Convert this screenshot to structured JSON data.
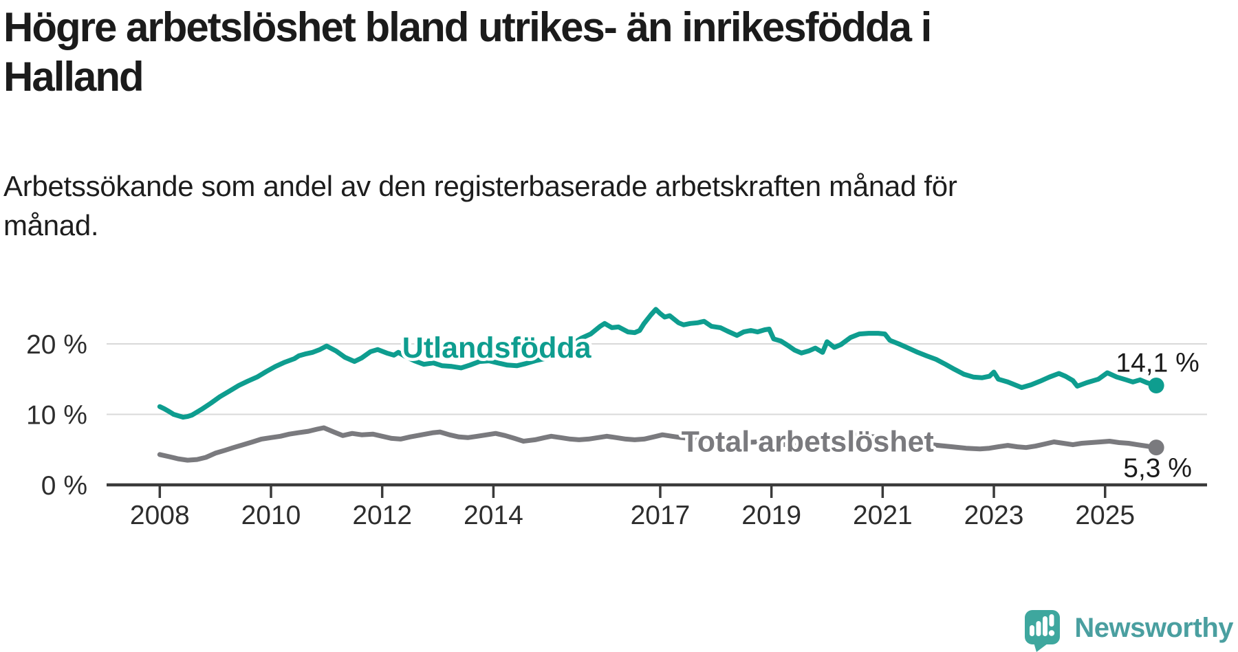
{
  "title": "Högre arbetslöshet bland utrikes- än inrikesfödda i Halland",
  "title_lines": [
    "Högre arbetslöshet bland utrikes- än inrikesfödda i",
    "Halland"
  ],
  "subtitle": "Arbetssökande som andel av den registerbaserade arbetskraften månad för månad.",
  "subtitle_lines": [
    "Arbetssökande som andel av den registerbaserade arbetskraften månad för",
    "månad."
  ],
  "branding": {
    "logo_text": "Newsworthy",
    "logo_icon": "speech-bubble-bar-chart-icon",
    "logo_bubble_color": "#3EA79E",
    "logo_text_color": "#4A9FA0"
  },
  "chart_data": {
    "type": "line",
    "grid": "horizontal",
    "legend": "inline-labels",
    "xlim": [
      2007.0,
      2026.85
    ],
    "ylim": [
      0,
      26.5
    ],
    "x_ticks": [
      {
        "year": 2008,
        "label": "2008"
      },
      {
        "year": 2010,
        "label": "2010"
      },
      {
        "year": 2012,
        "label": "2012"
      },
      {
        "year": 2014,
        "label": "2014"
      },
      {
        "year": 2017,
        "label": "2017"
      },
      {
        "year": 2019,
        "label": "2019"
      },
      {
        "year": 2021,
        "label": "2021"
      },
      {
        "year": 2023,
        "label": "2023"
      },
      {
        "year": 2025,
        "label": "2025"
      }
    ],
    "y_ticks": [
      {
        "value": 0,
        "label": "0 %"
      },
      {
        "value": 10,
        "label": "10 %"
      },
      {
        "value": 20,
        "label": "20 %"
      }
    ],
    "series": [
      {
        "name": "Utlandsfödda",
        "color": "#0E9D8F",
        "end_label": "14,1 %",
        "end_label_position": "above",
        "label_anchor": {
          "year": 2012.36,
          "value": 19.5
        },
        "points": [
          [
            2008.0,
            11.1
          ],
          [
            2008.08,
            10.8
          ],
          [
            2008.17,
            10.4
          ],
          [
            2008.25,
            10.0
          ],
          [
            2008.42,
            9.6
          ],
          [
            2008.5,
            9.7
          ],
          [
            2008.58,
            9.9
          ],
          [
            2008.75,
            10.7
          ],
          [
            2008.92,
            11.6
          ],
          [
            2009.08,
            12.5
          ],
          [
            2009.25,
            13.3
          ],
          [
            2009.42,
            14.1
          ],
          [
            2009.58,
            14.7
          ],
          [
            2009.75,
            15.3
          ],
          [
            2009.92,
            16.1
          ],
          [
            2010.08,
            16.8
          ],
          [
            2010.25,
            17.4
          ],
          [
            2010.42,
            17.9
          ],
          [
            2010.5,
            18.3
          ],
          [
            2010.63,
            18.6
          ],
          [
            2010.75,
            18.8
          ],
          [
            2010.88,
            19.2
          ],
          [
            2011.0,
            19.7
          ],
          [
            2011.17,
            19.0
          ],
          [
            2011.33,
            18.1
          ],
          [
            2011.5,
            17.5
          ],
          [
            2011.63,
            18.0
          ],
          [
            2011.79,
            18.9
          ],
          [
            2011.92,
            19.2
          ],
          [
            2012.08,
            18.7
          ],
          [
            2012.21,
            18.4
          ],
          [
            2012.29,
            18.8
          ],
          [
            2012.42,
            18.2
          ],
          [
            2012.58,
            17.6
          ],
          [
            2012.75,
            17.1
          ],
          [
            2012.92,
            17.3
          ],
          [
            2013.08,
            16.9
          ],
          [
            2013.25,
            16.8
          ],
          [
            2013.42,
            16.6
          ],
          [
            2013.58,
            17.0
          ],
          [
            2013.75,
            17.5
          ],
          [
            2013.92,
            17.6
          ],
          [
            2014.08,
            17.3
          ],
          [
            2014.25,
            17.0
          ],
          [
            2014.42,
            16.9
          ],
          [
            2014.58,
            17.2
          ],
          [
            2014.75,
            17.6
          ],
          [
            2014.92,
            17.9
          ],
          [
            2015.08,
            18.3
          ],
          [
            2015.25,
            19.1
          ],
          [
            2015.42,
            20.0
          ],
          [
            2015.58,
            20.8
          ],
          [
            2015.75,
            21.4
          ],
          [
            2015.92,
            22.5
          ],
          [
            2016.0,
            22.9
          ],
          [
            2016.13,
            22.3
          ],
          [
            2016.25,
            22.4
          ],
          [
            2016.42,
            21.7
          ],
          [
            2016.54,
            21.6
          ],
          [
            2016.63,
            21.9
          ],
          [
            2016.71,
            22.9
          ],
          [
            2016.83,
            24.1
          ],
          [
            2016.92,
            24.9
          ],
          [
            2017.0,
            24.3
          ],
          [
            2017.08,
            23.8
          ],
          [
            2017.17,
            24.0
          ],
          [
            2017.33,
            23.0
          ],
          [
            2017.42,
            22.7
          ],
          [
            2017.54,
            22.9
          ],
          [
            2017.67,
            23.0
          ],
          [
            2017.79,
            23.2
          ],
          [
            2017.92,
            22.5
          ],
          [
            2018.08,
            22.3
          ],
          [
            2018.21,
            21.8
          ],
          [
            2018.38,
            21.2
          ],
          [
            2018.5,
            21.7
          ],
          [
            2018.63,
            21.9
          ],
          [
            2018.75,
            21.7
          ],
          [
            2018.88,
            22.0
          ],
          [
            2018.96,
            22.1
          ],
          [
            2019.04,
            20.7
          ],
          [
            2019.17,
            20.4
          ],
          [
            2019.29,
            19.8
          ],
          [
            2019.42,
            19.1
          ],
          [
            2019.54,
            18.7
          ],
          [
            2019.67,
            19.0
          ],
          [
            2019.79,
            19.4
          ],
          [
            2019.92,
            18.8
          ],
          [
            2020.0,
            20.3
          ],
          [
            2020.13,
            19.5
          ],
          [
            2020.25,
            19.9
          ],
          [
            2020.42,
            20.9
          ],
          [
            2020.58,
            21.4
          ],
          [
            2020.75,
            21.5
          ],
          [
            2020.92,
            21.5
          ],
          [
            2021.04,
            21.4
          ],
          [
            2021.13,
            20.5
          ],
          [
            2021.29,
            20.0
          ],
          [
            2021.46,
            19.4
          ],
          [
            2021.63,
            18.8
          ],
          [
            2021.79,
            18.3
          ],
          [
            2021.96,
            17.8
          ],
          [
            2022.13,
            17.1
          ],
          [
            2022.29,
            16.4
          ],
          [
            2022.46,
            15.7
          ],
          [
            2022.63,
            15.3
          ],
          [
            2022.79,
            15.2
          ],
          [
            2022.92,
            15.4
          ],
          [
            2023.0,
            16.0
          ],
          [
            2023.08,
            15.0
          ],
          [
            2023.25,
            14.6
          ],
          [
            2023.5,
            13.8
          ],
          [
            2023.67,
            14.2
          ],
          [
            2023.83,
            14.7
          ],
          [
            2024.0,
            15.3
          ],
          [
            2024.17,
            15.8
          ],
          [
            2024.29,
            15.4
          ],
          [
            2024.42,
            14.8
          ],
          [
            2024.5,
            14.0
          ],
          [
            2024.67,
            14.5
          ],
          [
            2024.88,
            15.0
          ],
          [
            2025.04,
            15.9
          ],
          [
            2025.21,
            15.3
          ],
          [
            2025.38,
            14.9
          ],
          [
            2025.5,
            14.6
          ],
          [
            2025.63,
            14.9
          ],
          [
            2025.75,
            14.5
          ],
          [
            2025.92,
            14.1
          ]
        ]
      },
      {
        "name": "Total arbetslöshet",
        "color": "#7A7A7E",
        "end_label": "5,3 %",
        "end_label_position": "below",
        "label_anchor": {
          "year": 2017.38,
          "value": 6.2
        },
        "points": [
          [
            2008.0,
            4.3
          ],
          [
            2008.17,
            4.0
          ],
          [
            2008.33,
            3.7
          ],
          [
            2008.5,
            3.5
          ],
          [
            2008.67,
            3.6
          ],
          [
            2008.83,
            3.9
          ],
          [
            2009.0,
            4.5
          ],
          [
            2009.17,
            4.9
          ],
          [
            2009.33,
            5.3
          ],
          [
            2009.5,
            5.7
          ],
          [
            2009.67,
            6.1
          ],
          [
            2009.83,
            6.5
          ],
          [
            2010.0,
            6.7
          ],
          [
            2010.17,
            6.9
          ],
          [
            2010.33,
            7.2
          ],
          [
            2010.5,
            7.4
          ],
          [
            2010.67,
            7.6
          ],
          [
            2010.83,
            7.9
          ],
          [
            2010.95,
            8.1
          ],
          [
            2011.13,
            7.5
          ],
          [
            2011.29,
            7.0
          ],
          [
            2011.46,
            7.3
          ],
          [
            2011.63,
            7.1
          ],
          [
            2011.83,
            7.2
          ],
          [
            2012.0,
            6.9
          ],
          [
            2012.17,
            6.6
          ],
          [
            2012.33,
            6.5
          ],
          [
            2012.5,
            6.8
          ],
          [
            2012.71,
            7.1
          ],
          [
            2012.92,
            7.4
          ],
          [
            2013.04,
            7.5
          ],
          [
            2013.21,
            7.1
          ],
          [
            2013.38,
            6.8
          ],
          [
            2013.54,
            6.7
          ],
          [
            2013.71,
            6.9
          ],
          [
            2013.88,
            7.1
          ],
          [
            2014.04,
            7.3
          ],
          [
            2014.21,
            7.0
          ],
          [
            2014.38,
            6.6
          ],
          [
            2014.54,
            6.2
          ],
          [
            2014.75,
            6.4
          ],
          [
            2014.92,
            6.7
          ],
          [
            2015.04,
            6.9
          ],
          [
            2015.21,
            6.7
          ],
          [
            2015.38,
            6.5
          ],
          [
            2015.54,
            6.4
          ],
          [
            2015.71,
            6.5
          ],
          [
            2015.88,
            6.7
          ],
          [
            2016.04,
            6.9
          ],
          [
            2016.21,
            6.7
          ],
          [
            2016.38,
            6.5
          ],
          [
            2016.54,
            6.4
          ],
          [
            2016.71,
            6.5
          ],
          [
            2016.88,
            6.8
          ],
          [
            2017.04,
            7.1
          ],
          [
            2017.21,
            6.9
          ],
          [
            2017.38,
            6.7
          ],
          [
            2017.54,
            6.6
          ],
          [
            2017.71,
            6.5
          ],
          [
            2017.88,
            6.4
          ],
          [
            2018.04,
            6.6
          ],
          [
            2018.25,
            6.3
          ],
          [
            2018.5,
            6.0
          ],
          [
            2018.75,
            6.1
          ],
          [
            2019.0,
            6.0
          ],
          [
            2019.25,
            5.7
          ],
          [
            2019.5,
            5.5
          ],
          [
            2019.75,
            5.7
          ],
          [
            2020.0,
            5.9
          ],
          [
            2020.25,
            6.6
          ],
          [
            2020.5,
            7.1
          ],
          [
            2020.75,
            6.9
          ],
          [
            2021.0,
            6.7
          ],
          [
            2021.25,
            6.4
          ],
          [
            2021.5,
            6.1
          ],
          [
            2021.75,
            5.8
          ],
          [
            2022.0,
            5.6
          ],
          [
            2022.25,
            5.4
          ],
          [
            2022.5,
            5.2
          ],
          [
            2022.75,
            5.1
          ],
          [
            2022.92,
            5.2
          ],
          [
            2023.08,
            5.4
          ],
          [
            2023.25,
            5.6
          ],
          [
            2023.42,
            5.4
          ],
          [
            2023.58,
            5.3
          ],
          [
            2023.75,
            5.5
          ],
          [
            2023.92,
            5.8
          ],
          [
            2024.08,
            6.1
          ],
          [
            2024.25,
            5.9
          ],
          [
            2024.42,
            5.7
          ],
          [
            2024.58,
            5.9
          ],
          [
            2024.75,
            6.0
          ],
          [
            2024.92,
            6.1
          ],
          [
            2025.08,
            6.2
          ],
          [
            2025.25,
            6.0
          ],
          [
            2025.42,
            5.9
          ],
          [
            2025.58,
            5.7
          ],
          [
            2025.75,
            5.5
          ],
          [
            2025.92,
            5.3
          ]
        ]
      }
    ]
  }
}
